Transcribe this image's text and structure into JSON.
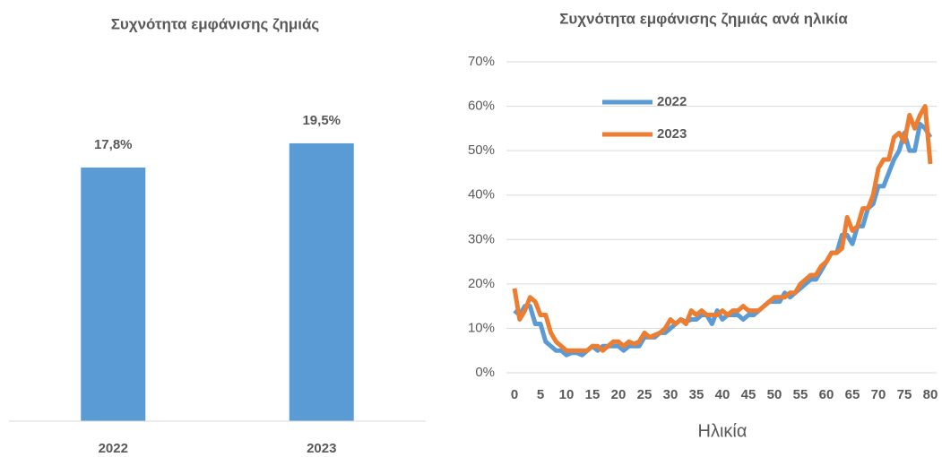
{
  "chart_data": [
    {
      "type": "bar",
      "title": "Συχνότητα εμφάνισης ζημιάς",
      "categories": [
        "2022",
        "2023"
      ],
      "values": [
        17.8,
        19.5
      ],
      "value_labels": [
        "17,8%",
        "19,5%"
      ],
      "color": "#5b9bd5",
      "ylim": [
        0,
        25
      ]
    },
    {
      "type": "line",
      "title": "Συχνότητα εμφάνισης ζημιάς ανά ηλικία",
      "xlabel": "Ηλικία",
      "x": [
        0,
        1,
        2,
        3,
        4,
        5,
        6,
        7,
        8,
        9,
        10,
        11,
        12,
        13,
        14,
        15,
        16,
        17,
        18,
        19,
        20,
        21,
        22,
        23,
        24,
        25,
        26,
        27,
        28,
        29,
        30,
        31,
        32,
        33,
        34,
        35,
        36,
        37,
        38,
        39,
        40,
        41,
        42,
        43,
        44,
        45,
        46,
        47,
        48,
        49,
        50,
        51,
        52,
        53,
        54,
        55,
        56,
        57,
        58,
        59,
        60,
        61,
        62,
        63,
        64,
        65,
        66,
        67,
        68,
        69,
        70,
        71,
        72,
        73,
        74,
        75,
        76,
        77,
        78,
        79,
        80
      ],
      "series": [
        {
          "name": "2022",
          "color": "#5b9bd5",
          "values": [
            14,
            13,
            15,
            15,
            11,
            11,
            7,
            6,
            5,
            5,
            4,
            4.5,
            4.5,
            4,
            5,
            6,
            5,
            6,
            6,
            6,
            6,
            5,
            6,
            6,
            6,
            8,
            8,
            8,
            9,
            9,
            10,
            11,
            12,
            11.5,
            12,
            12,
            13,
            13,
            11,
            14,
            12,
            13,
            13,
            13,
            12,
            13,
            13,
            14,
            15,
            16,
            16,
            16,
            18,
            17,
            18,
            19,
            20,
            21,
            21,
            23,
            25,
            27,
            27,
            31,
            31,
            29,
            33,
            33,
            37,
            38,
            42,
            42,
            45,
            48,
            50,
            54,
            50,
            50,
            56,
            55,
            53
          ]
        },
        {
          "name": "2023",
          "color": "#ed7d31",
          "values": [
            19,
            12,
            14,
            17,
            16,
            13,
            13,
            9,
            7,
            6,
            5,
            5,
            5,
            5,
            5,
            6,
            6,
            5,
            6,
            7,
            7,
            6,
            7,
            6.5,
            7,
            9,
            8,
            8.5,
            9,
            10,
            12,
            11,
            12,
            11,
            14,
            13,
            14,
            13,
            13,
            13,
            14,
            13,
            14,
            14,
            15,
            14,
            14,
            14,
            15,
            16,
            17,
            17,
            17,
            18,
            18,
            20,
            21,
            22,
            22,
            24,
            25,
            27,
            27,
            28,
            35,
            32,
            33,
            37,
            37,
            40,
            46,
            48,
            48,
            53,
            54,
            52,
            58,
            55,
            58,
            60,
            47
          ]
        }
      ],
      "xlim": [
        0,
        80
      ],
      "xticks": [
        0,
        5,
        10,
        15,
        20,
        25,
        30,
        35,
        40,
        45,
        50,
        55,
        60,
        65,
        70,
        75,
        80
      ],
      "ylim": [
        0,
        70
      ],
      "yticks": [
        {
          "value": 0,
          "label": "0%"
        },
        {
          "value": 10,
          "label": "10%"
        },
        {
          "value": 20,
          "label": "20%"
        },
        {
          "value": 30,
          "label": "30%"
        },
        {
          "value": 40,
          "label": "40%"
        },
        {
          "value": 50,
          "label": "50%"
        },
        {
          "value": 60,
          "label": "60%"
        },
        {
          "value": 70,
          "label": "70%"
        }
      ],
      "grid": true,
      "legend": "upper-left"
    }
  ]
}
